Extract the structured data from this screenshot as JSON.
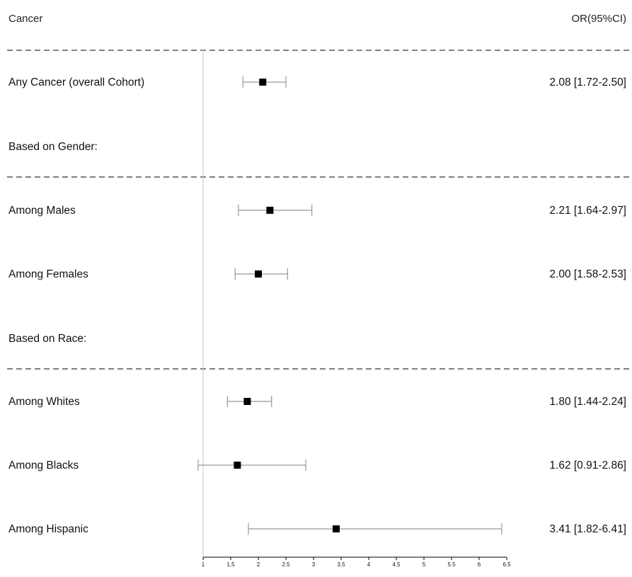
{
  "chart_data": {
    "type": "forest",
    "header": {
      "label_column": "Cancer",
      "value_column": "OR(95%CI)"
    },
    "rows": [
      {
        "kind": "estimate",
        "label": "Any Cancer (overall Cohort)",
        "or": 2.08,
        "lower": 1.72,
        "upper": 2.5,
        "text": "2.08 [1.72-2.50]"
      },
      {
        "kind": "heading",
        "label": "Based on Gender:"
      },
      {
        "kind": "estimate",
        "label": "Among Males",
        "or": 2.21,
        "lower": 1.64,
        "upper": 2.97,
        "text": "2.21 [1.64-2.97]"
      },
      {
        "kind": "estimate",
        "label": "Among Females",
        "or": 2.0,
        "lower": 1.58,
        "upper": 2.53,
        "text": "2.00 [1.58-2.53]"
      },
      {
        "kind": "heading",
        "label": "Based on Race:"
      },
      {
        "kind": "estimate",
        "label": "Among Whites",
        "or": 1.8,
        "lower": 1.44,
        "upper": 2.24,
        "text": "1.80 [1.44-2.24]"
      },
      {
        "kind": "estimate",
        "label": "Among Blacks",
        "or": 1.62,
        "lower": 0.91,
        "upper": 2.86,
        "text": "1.62 [0.91-2.86]"
      },
      {
        "kind": "estimate",
        "label": "Among Hispanic",
        "or": 3.41,
        "lower": 1.82,
        "upper": 6.41,
        "text": "3.41 [1.82-6.41]"
      }
    ],
    "x_axis": {
      "range": [
        1,
        6.5
      ],
      "ticks": [
        1,
        1.5,
        2,
        2.5,
        3,
        3.5,
        4,
        4.5,
        5,
        5.5,
        6,
        6.5
      ],
      "tick_labels": [
        "1",
        "1.5",
        "2",
        "2.5",
        "3",
        "3.5",
        "4",
        "4.5",
        "5",
        "5.5",
        "6",
        "6.5"
      ]
    },
    "reference_line": 1,
    "colors": {
      "marker": "#000000",
      "ci_line": "#999999",
      "reference_line": "#c8c8c8",
      "divider": "#333333"
    }
  }
}
